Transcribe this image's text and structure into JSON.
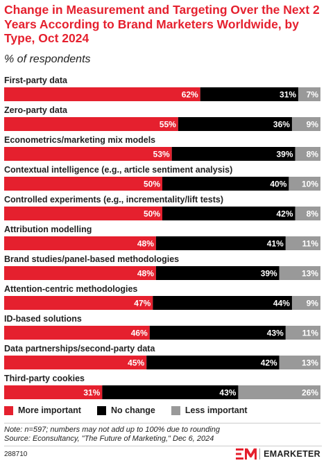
{
  "title": "Change in Measurement and Targeting Over the Next 2 Years According to Brand Marketers Worldwide, by Type, Oct 2024",
  "subtitle": "% of respondents",
  "colors": {
    "accent": "#e5202e",
    "more_important": "#e5202e",
    "no_change": "#000000",
    "less_important": "#999999",
    "category_text": "#222222"
  },
  "chart_data": {
    "type": "bar",
    "orientation": "horizontal",
    "stacked": true,
    "categories": [
      "First-party data",
      "Zero-party data",
      "Econometrics/marketing mix models",
      "Contextual intelligence (e.g., article sentiment analysis)",
      "Controlled experiments (e.g., incrementality/lift tests)",
      "Attribution modelling",
      "Brand studies/panel-based methodologies",
      "Attention-centric methodologies",
      "ID-based solutions",
      "Data partnerships/second-party data",
      "Third-party cookies"
    ],
    "series": [
      {
        "name": "More important",
        "color": "#e5202e",
        "values": [
          62,
          55,
          53,
          50,
          50,
          48,
          48,
          47,
          46,
          45,
          31
        ]
      },
      {
        "name": "No change",
        "color": "#000000",
        "values": [
          31,
          36,
          39,
          40,
          42,
          41,
          39,
          44,
          43,
          42,
          43
        ]
      },
      {
        "name": "Less important",
        "color": "#999999",
        "values": [
          7,
          9,
          8,
          10,
          8,
          11,
          13,
          9,
          11,
          13,
          26
        ]
      }
    ],
    "value_suffix": "%",
    "xlim": [
      0,
      100
    ],
    "grid": false,
    "legend_position": "bottom-left"
  },
  "notes": [
    "Note: n=597; numbers may not add up to 100% due to rounding",
    "Source: Econsultancy, \"The Future of Marketing,\" Dec 6, 2024"
  ],
  "footer": {
    "chart_id": "288710",
    "brand": "EMARKETER",
    "brand_icon": "em-logo-icon"
  }
}
